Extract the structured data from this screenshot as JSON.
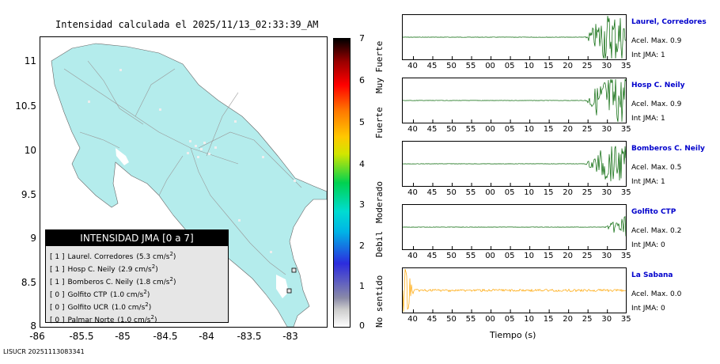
{
  "map": {
    "title": "Intensidad calculada el 2025/11/13_02:33:39_AM",
    "lat_ticks": [
      "11",
      "10.5",
      "10",
      "9.5",
      "9",
      "8.5",
      "8"
    ],
    "lon_ticks": [
      "-86",
      "-85.5",
      "-85",
      "-84.5",
      "-84",
      "-83.5",
      "-83"
    ],
    "land_color": "#b4ecec",
    "legend_title": "INTENSIDAD JMA [0 a 7]",
    "legend_items": [
      {
        "level": "[ 1 ]",
        "name": "Laurel. Corredores",
        "pga": "(5.3 cm/s",
        "sup": "2",
        "close": ")"
      },
      {
        "level": "[ 1 ]",
        "name": "Hosp C. Neily",
        "pga": "(2.9 cm/s",
        "sup": "2",
        "close": ")"
      },
      {
        "level": "[ 1 ]",
        "name": "Bomberos C. Neily",
        "pga": "(1.8 cm/s",
        "sup": "2",
        "close": ")"
      },
      {
        "level": "[ 0 ]",
        "name": "Golfito CTP",
        "pga": "(1.0 cm/s",
        "sup": "2",
        "close": ")"
      },
      {
        "level": "[ 0 ]",
        "name": "Golfito UCR",
        "pga": "(1.0 cm/s",
        "sup": "2",
        "close": ")"
      },
      {
        "level": "[ 0 ]",
        "name": "Palmar Norte",
        "pga": "(1.0 cm/s",
        "sup": "2",
        "close": ")"
      }
    ]
  },
  "colorbar": {
    "ticks": [
      "7",
      "6",
      "5",
      "4",
      "3",
      "2",
      "1",
      "0"
    ],
    "labels": [
      "Muy Fuerte",
      "Fuerte",
      "Moderado",
      "Debil",
      "No sentido"
    ]
  },
  "chart_data": {
    "type": "line",
    "xlabel": "Tiempo (s)",
    "x_ticks": [
      "40",
      "45",
      "50",
      "55",
      "00",
      "05",
      "10",
      "15",
      "20",
      "25",
      "30",
      "35"
    ],
    "panels": [
      {
        "station": "Laurel, Corredores",
        "accel_label": "Acel. Max. 0.9",
        "jma_label": "Int JMA: 1",
        "color": "#006400",
        "onset_tick_index": 9,
        "amplitude": 0.9
      },
      {
        "station": "Hosp C. Neily",
        "accel_label": "Acel. Max. 0.9",
        "jma_label": "Int JMA: 1",
        "color": "#006400",
        "onset_tick_index": 9,
        "amplitude": 0.9
      },
      {
        "station": "Bomberos C. Neily",
        "accel_label": "Acel. Max. 0.5",
        "jma_label": "Int JMA: 1",
        "color": "#006400",
        "onset_tick_index": 9,
        "amplitude": 0.5
      },
      {
        "station": "Golfito CTP",
        "accel_label": "Acel. Max. 0.2",
        "jma_label": "Int JMA: 0",
        "color": "#006400",
        "onset_tick_index": 10,
        "amplitude": 0.2
      },
      {
        "station": "La Sabana",
        "accel_label": "Acel. Max. 0.0",
        "jma_label": "Int JMA: 0",
        "color": "#ffa500",
        "onset_tick_index": 0,
        "amplitude": 0.0
      }
    ]
  },
  "footer": "LISUCR 20251113083341"
}
